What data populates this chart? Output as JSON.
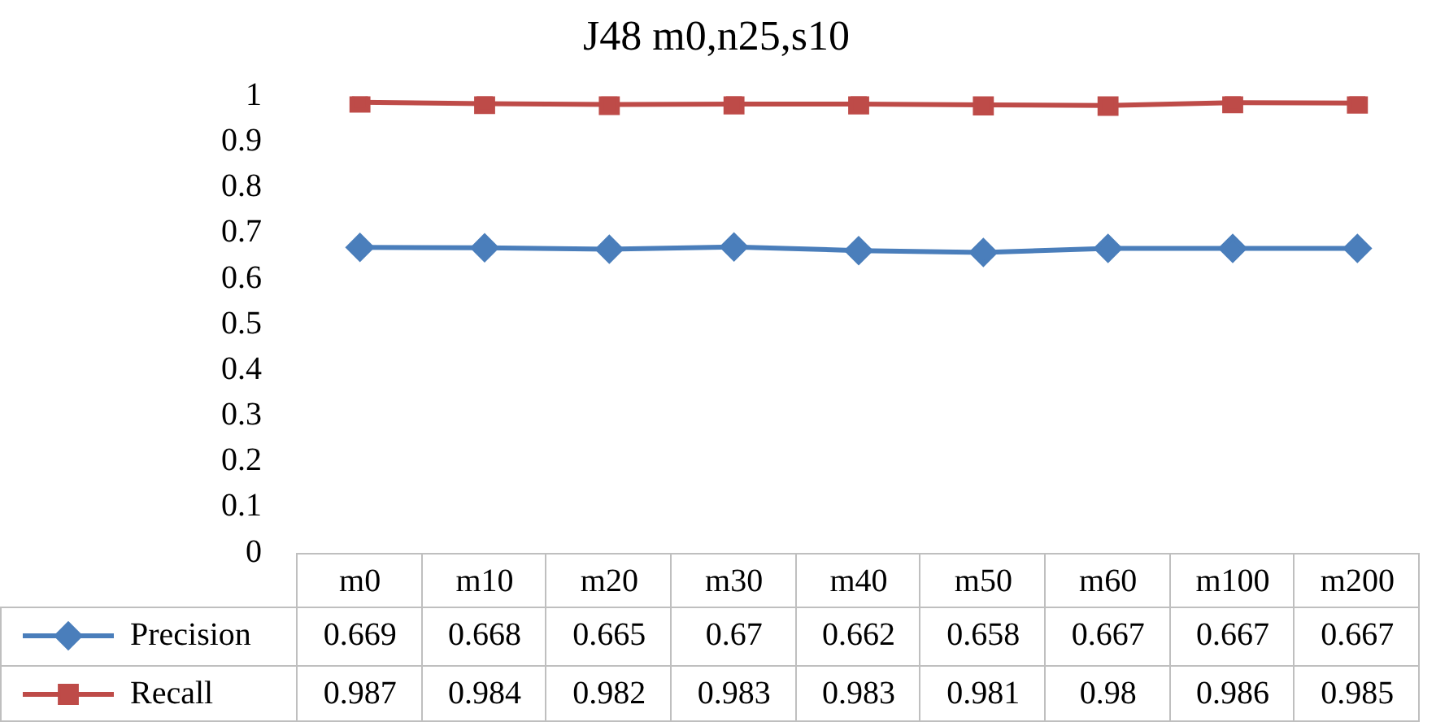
{
  "chart_data": {
    "type": "line",
    "title": "J48 m0,n25,s10",
    "categories": [
      "m0",
      "m10",
      "m20",
      "m30",
      "m40",
      "m50",
      "m60",
      "m100",
      "m200"
    ],
    "series": [
      {
        "name": "Precision",
        "color": "#4a7ebb",
        "marker": "diamond",
        "values": [
          0.669,
          0.668,
          0.665,
          0.67,
          0.662,
          0.658,
          0.667,
          0.667,
          0.667
        ]
      },
      {
        "name": "Recall",
        "color": "#be4b48",
        "marker": "square",
        "values": [
          0.987,
          0.984,
          0.982,
          0.983,
          0.983,
          0.981,
          0.98,
          0.986,
          0.985
        ]
      }
    ],
    "ylim": [
      0,
      1
    ],
    "yticks": [
      0,
      0.1,
      0.2,
      0.3,
      0.4,
      0.5,
      0.6,
      0.7,
      0.8,
      0.9,
      1
    ],
    "grid": false,
    "legend": "bottom",
    "data_labels": true
  }
}
